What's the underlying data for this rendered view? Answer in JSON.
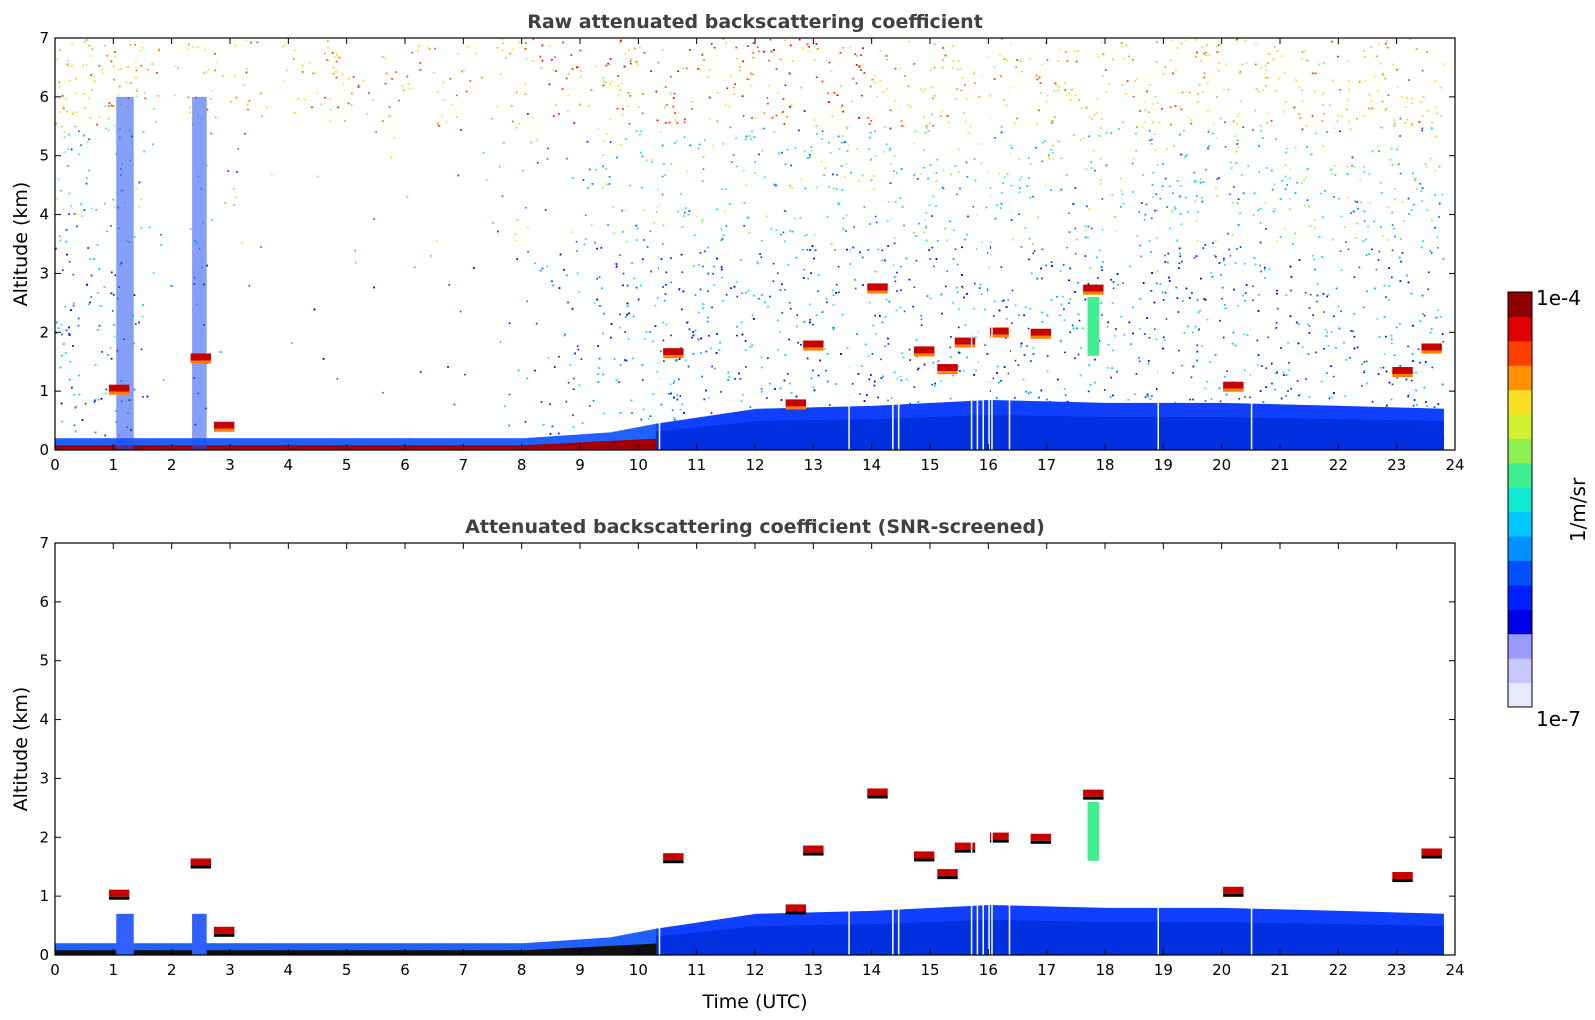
{
  "chart_data": [
    {
      "type": "heatmap",
      "title": "Raw attenuated backscattering coefficient",
      "xlabel": "",
      "ylabel": "Altitude (km)",
      "xlim": [
        0,
        24
      ],
      "ylim": [
        0,
        7
      ],
      "xticks": [
        "0",
        "1",
        "2",
        "3",
        "4",
        "5",
        "6",
        "7",
        "8",
        "9",
        "10",
        "11",
        "12",
        "13",
        "14",
        "15",
        "16",
        "17",
        "18",
        "19",
        "20",
        "21",
        "22",
        "23",
        "24"
      ],
      "yticks": [
        "0",
        "1",
        "2",
        "3",
        "4",
        "5",
        "6",
        "7"
      ],
      "data_end_time": 23.8,
      "surface_layer": {
        "top_km": 0.22,
        "color_at_ground": "dark-red",
        "color_above": "blue"
      },
      "boundary_layer_top_km": [
        {
          "t": 0,
          "h": 0.2
        },
        {
          "t": 4,
          "h": 0.2
        },
        {
          "t": 8,
          "h": 0.2
        },
        {
          "t": 9.5,
          "h": 0.3
        },
        {
          "t": 10.3,
          "h": 0.45
        },
        {
          "t": 12,
          "h": 0.7
        },
        {
          "t": 14,
          "h": 0.75
        },
        {
          "t": 16,
          "h": 0.85
        },
        {
          "t": 18,
          "h": 0.8
        },
        {
          "t": 20,
          "h": 0.8
        },
        {
          "t": 22,
          "h": 0.75
        },
        {
          "t": 23.8,
          "h": 0.7
        }
      ],
      "clouds": [
        {
          "t": 1.1,
          "h": 1.05
        },
        {
          "t": 2.5,
          "h": 1.58
        },
        {
          "t": 2.9,
          "h": 0.42
        },
        {
          "t": 10.6,
          "h": 1.67
        },
        {
          "t": 12.7,
          "h": 0.8
        },
        {
          "t": 13.0,
          "h": 1.8
        },
        {
          "t": 14.1,
          "h": 2.77
        },
        {
          "t": 14.9,
          "h": 1.7
        },
        {
          "t": 15.3,
          "h": 1.4
        },
        {
          "t": 15.6,
          "h": 1.85
        },
        {
          "t": 16.2,
          "h": 2.02
        },
        {
          "t": 16.9,
          "h": 2.0
        },
        {
          "t": 17.8,
          "h": 2.75
        },
        {
          "t": 20.2,
          "h": 1.1
        },
        {
          "t": 23.1,
          "h": 1.35
        },
        {
          "t": 23.6,
          "h": 1.75
        }
      ],
      "noise": {
        "daytime_hours": [
          7.5,
          23.8
        ],
        "high_altitude_color": "orange-yellow"
      }
    },
    {
      "type": "heatmap",
      "title": "Attenuated backscattering coefficient (SNR-screened)",
      "xlabel": "Time (UTC)",
      "ylabel": "Altitude (km)",
      "xlim": [
        0,
        24
      ],
      "ylim": [
        0,
        7
      ],
      "xticks": [
        "0",
        "1",
        "2",
        "3",
        "4",
        "5",
        "6",
        "7",
        "8",
        "9",
        "10",
        "11",
        "12",
        "13",
        "14",
        "15",
        "16",
        "17",
        "18",
        "19",
        "20",
        "21",
        "22",
        "23",
        "24"
      ],
      "yticks": [
        "0",
        "1",
        "2",
        "3",
        "4",
        "5",
        "6",
        "7"
      ],
      "screened": true
    }
  ],
  "colorbar": {
    "label": "1/m/sr",
    "min_label": "1e-7",
    "max_label": "1e-4",
    "scale": "log",
    "colors": [
      "#e8e8ff",
      "#c8c8ff",
      "#9a9aff",
      "#0000e8",
      "#0020ff",
      "#0050ff",
      "#0090ff",
      "#00c8ff",
      "#10e8d0",
      "#40f090",
      "#90f050",
      "#d0f030",
      "#f8e020",
      "#ff9000",
      "#ff4000",
      "#e00000",
      "#900000"
    ]
  }
}
